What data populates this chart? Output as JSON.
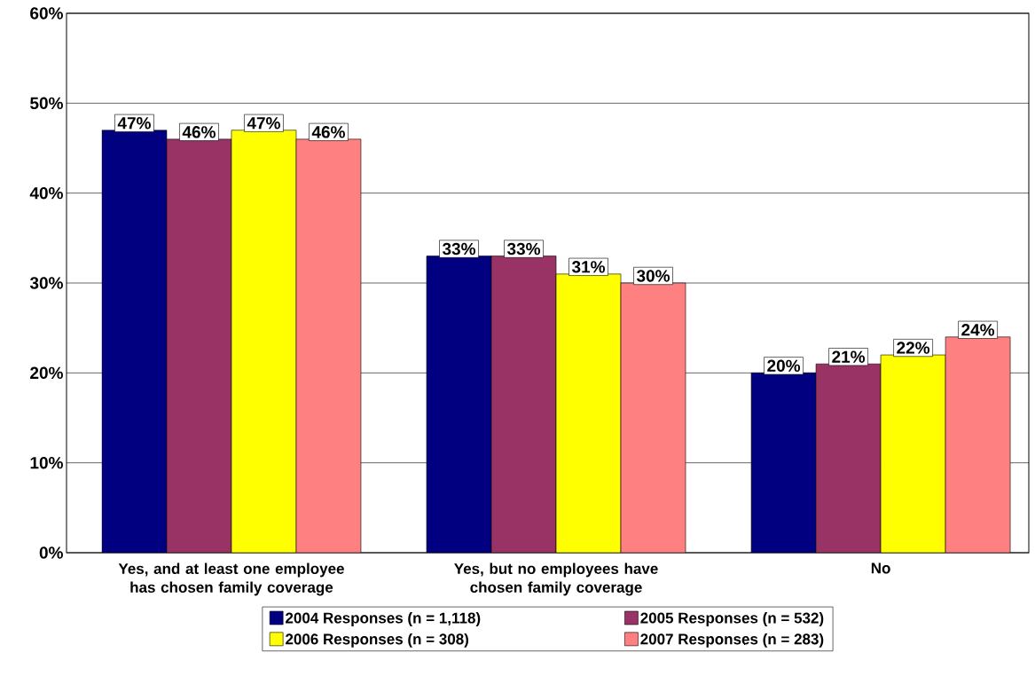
{
  "chart_data": {
    "type": "bar",
    "categories": [
      "Yes, and at least one employee has chosen family coverage",
      "Yes, but no employees have chosen family coverage",
      "No"
    ],
    "series": [
      {
        "name": "2004 Responses (n = 1,118)",
        "color": "#000080",
        "values": [
          47,
          33,
          20
        ],
        "value_labels": [
          "47%",
          "33%",
          "20%"
        ]
      },
      {
        "name": "2005 Responses (n = 532)",
        "color": "#993366",
        "values": [
          46,
          33,
          21
        ],
        "value_labels": [
          "46%",
          "33%",
          "21%"
        ]
      },
      {
        "name": "2006 Responses (n = 308)",
        "color": "#ffff00",
        "values": [
          47,
          31,
          22
        ],
        "value_labels": [
          "47%",
          "31%",
          "22%"
        ]
      },
      {
        "name": "2007 Responses (n = 283)",
        "color": "#ff8080",
        "values": [
          46,
          30,
          24
        ],
        "value_labels": [
          "46%",
          "30%",
          "24%"
        ]
      }
    ],
    "ylim": [
      0,
      60
    ],
    "yticks": [
      {
        "value": 0,
        "label": "0%"
      },
      {
        "value": 10,
        "label": "10%"
      },
      {
        "value": 20,
        "label": "20%"
      },
      {
        "value": 30,
        "label": "30%"
      },
      {
        "value": 40,
        "label": "40%"
      },
      {
        "value": 50,
        "label": "50%"
      },
      {
        "value": 60,
        "label": "60%"
      }
    ],
    "grid": "y",
    "legend": "bottom"
  }
}
